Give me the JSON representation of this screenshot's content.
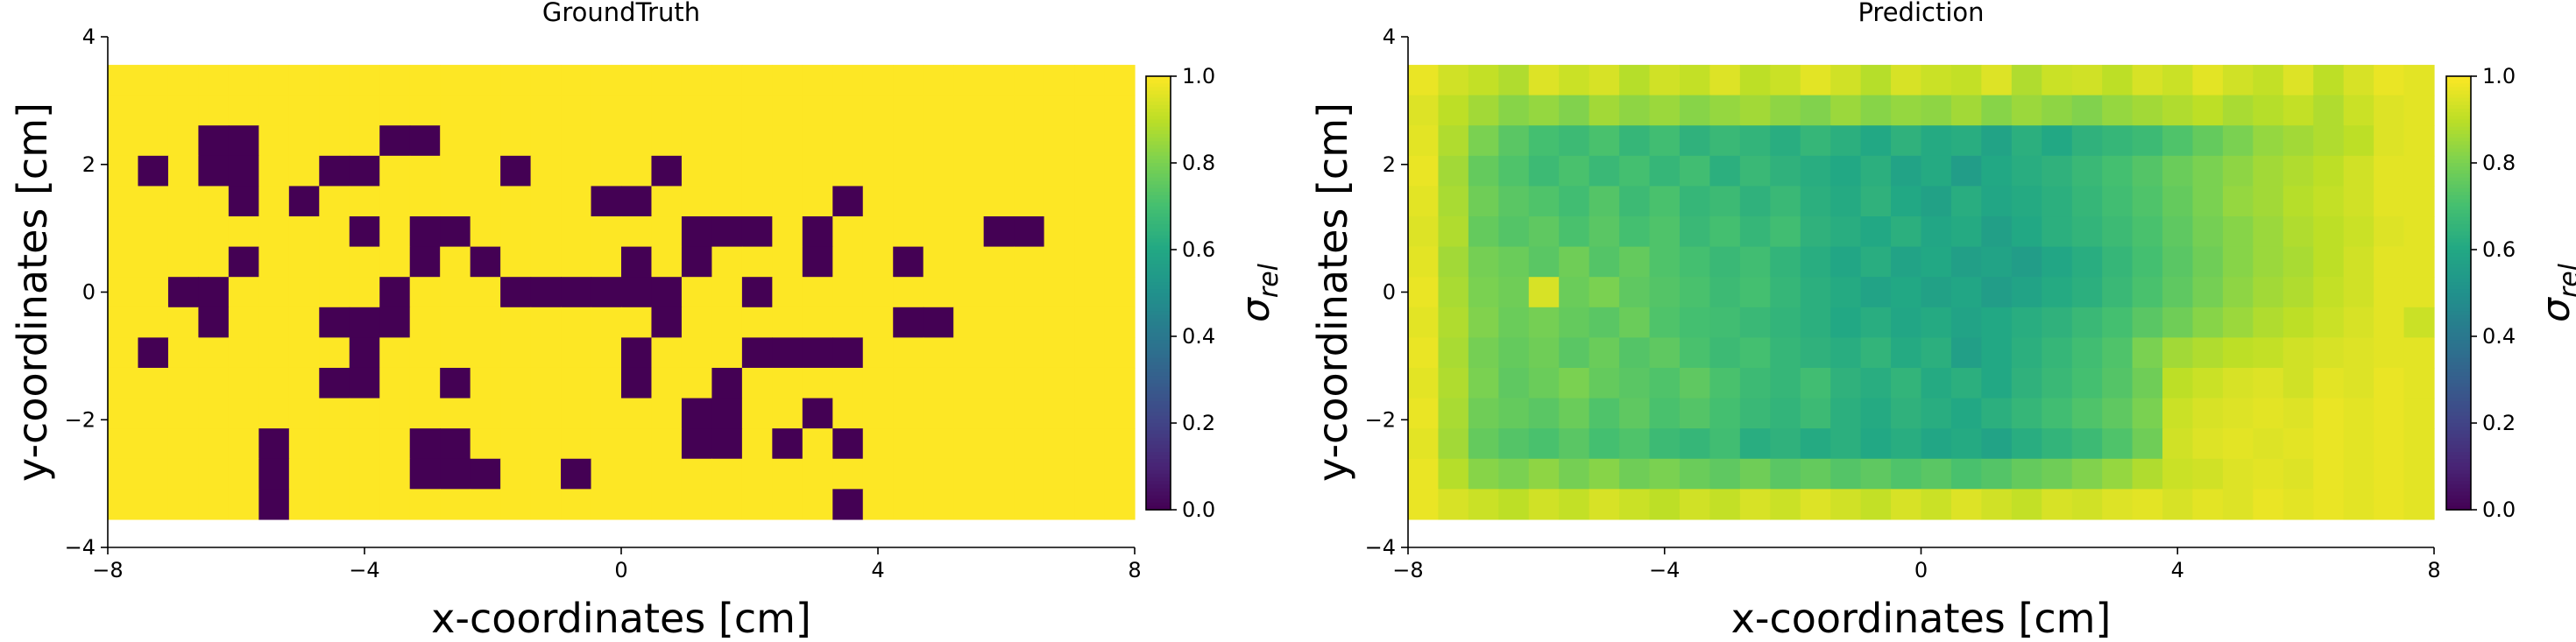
{
  "chart_data": [
    {
      "type": "heatmap",
      "title": "GroundTruth",
      "xlabel": "x-coordinates [cm]",
      "ylabel": "y-coordinates [cm]",
      "xlim": [
        -8,
        8
      ],
      "ylim": [
        -4,
        4
      ],
      "extent": [
        -8,
        8,
        -3.56,
        3.56
      ],
      "xticks": [
        -8,
        -4,
        0,
        4,
        8
      ],
      "yticks": [
        -4,
        -2,
        0,
        2,
        4
      ],
      "xtick_labels": [
        "−8",
        "−4",
        "0",
        "4",
        "8"
      ],
      "ytick_labels": [
        "−4",
        "−2",
        "0",
        "2",
        "4"
      ],
      "colorbar": {
        "label": "σ",
        "label_sub": "rel",
        "range": [
          0,
          1
        ],
        "ticks": [
          0.0,
          0.2,
          0.4,
          0.6,
          0.8,
          1.0
        ],
        "tick_labels": [
          "0.0",
          "0.2",
          "0.4",
          "0.6",
          "0.8",
          "1.0"
        ],
        "colormap": "viridis"
      },
      "grid": {
        "rows": 15,
        "cols": 34,
        "default_value": 1.0,
        "cells": [
          {
            "r": 2,
            "c": 3,
            "v": 0
          },
          {
            "r": 2,
            "c": 4,
            "v": 0
          },
          {
            "r": 2,
            "c": 9,
            "v": 0
          },
          {
            "r": 2,
            "c": 10,
            "v": 0
          },
          {
            "r": 3,
            "c": 1,
            "v": 0
          },
          {
            "r": 3,
            "c": 3,
            "v": 0
          },
          {
            "r": 3,
            "c": 4,
            "v": 0
          },
          {
            "r": 3,
            "c": 7,
            "v": 0
          },
          {
            "r": 3,
            "c": 8,
            "v": 0
          },
          {
            "r": 3,
            "c": 13,
            "v": 0
          },
          {
            "r": 3,
            "c": 18,
            "v": 0
          },
          {
            "r": 4,
            "c": 4,
            "v": 0
          },
          {
            "r": 4,
            "c": 6,
            "v": 0
          },
          {
            "r": 4,
            "c": 16,
            "v": 0
          },
          {
            "r": 4,
            "c": 17,
            "v": 0
          },
          {
            "r": 4,
            "c": 24,
            "v": 0
          },
          {
            "r": 5,
            "c": 8,
            "v": 0
          },
          {
            "r": 5,
            "c": 10,
            "v": 0
          },
          {
            "r": 5,
            "c": 11,
            "v": 0
          },
          {
            "r": 5,
            "c": 19,
            "v": 0
          },
          {
            "r": 5,
            "c": 20,
            "v": 0
          },
          {
            "r": 5,
            "c": 21,
            "v": 0
          },
          {
            "r": 5,
            "c": 23,
            "v": 0
          },
          {
            "r": 5,
            "c": 29,
            "v": 0
          },
          {
            "r": 5,
            "c": 30,
            "v": 0
          },
          {
            "r": 6,
            "c": 4,
            "v": 0
          },
          {
            "r": 6,
            "c": 10,
            "v": 0
          },
          {
            "r": 6,
            "c": 12,
            "v": 0
          },
          {
            "r": 6,
            "c": 17,
            "v": 0
          },
          {
            "r": 6,
            "c": 19,
            "v": 0
          },
          {
            "r": 6,
            "c": 23,
            "v": 0
          },
          {
            "r": 6,
            "c": 26,
            "v": 0
          },
          {
            "r": 7,
            "c": 2,
            "v": 0
          },
          {
            "r": 7,
            "c": 3,
            "v": 0
          },
          {
            "r": 7,
            "c": 9,
            "v": 0
          },
          {
            "r": 7,
            "c": 13,
            "v": 0
          },
          {
            "r": 7,
            "c": 14,
            "v": 0
          },
          {
            "r": 7,
            "c": 15,
            "v": 0
          },
          {
            "r": 7,
            "c": 16,
            "v": 0
          },
          {
            "r": 7,
            "c": 17,
            "v": 0
          },
          {
            "r": 7,
            "c": 18,
            "v": 0
          },
          {
            "r": 7,
            "c": 21,
            "v": 0
          },
          {
            "r": 8,
            "c": 3,
            "v": 0
          },
          {
            "r": 8,
            "c": 7,
            "v": 0
          },
          {
            "r": 8,
            "c": 8,
            "v": 0
          },
          {
            "r": 8,
            "c": 9,
            "v": 0
          },
          {
            "r": 8,
            "c": 18,
            "v": 0
          },
          {
            "r": 8,
            "c": 26,
            "v": 0
          },
          {
            "r": 8,
            "c": 27,
            "v": 0
          },
          {
            "r": 9,
            "c": 1,
            "v": 0
          },
          {
            "r": 9,
            "c": 8,
            "v": 0
          },
          {
            "r": 9,
            "c": 17,
            "v": 0
          },
          {
            "r": 9,
            "c": 21,
            "v": 0
          },
          {
            "r": 9,
            "c": 22,
            "v": 0
          },
          {
            "r": 9,
            "c": 23,
            "v": 0
          },
          {
            "r": 9,
            "c": 24,
            "v": 0
          },
          {
            "r": 10,
            "c": 7,
            "v": 0
          },
          {
            "r": 10,
            "c": 8,
            "v": 0
          },
          {
            "r": 10,
            "c": 11,
            "v": 0
          },
          {
            "r": 10,
            "c": 17,
            "v": 0
          },
          {
            "r": 10,
            "c": 20,
            "v": 0
          },
          {
            "r": 11,
            "c": 19,
            "v": 0
          },
          {
            "r": 11,
            "c": 20,
            "v": 0
          },
          {
            "r": 11,
            "c": 23,
            "v": 0
          },
          {
            "r": 12,
            "c": 5,
            "v": 0
          },
          {
            "r": 12,
            "c": 10,
            "v": 0
          },
          {
            "r": 12,
            "c": 11,
            "v": 0
          },
          {
            "r": 12,
            "c": 19,
            "v": 0
          },
          {
            "r": 12,
            "c": 20,
            "v": 0
          },
          {
            "r": 12,
            "c": 22,
            "v": 0
          },
          {
            "r": 12,
            "c": 24,
            "v": 0
          },
          {
            "r": 13,
            "c": 5,
            "v": 0
          },
          {
            "r": 13,
            "c": 10,
            "v": 0
          },
          {
            "r": 13,
            "c": 11,
            "v": 0
          },
          {
            "r": 13,
            "c": 12,
            "v": 0
          },
          {
            "r": 13,
            "c": 15,
            "v": 0
          },
          {
            "r": 14,
            "c": 5,
            "v": 0
          },
          {
            "r": 14,
            "c": 24,
            "v": 0
          }
        ]
      }
    },
    {
      "type": "heatmap",
      "title": "Prediction",
      "xlabel": "x-coordinates [cm]",
      "ylabel": "y-coordinates [cm]",
      "xlim": [
        -8,
        8
      ],
      "ylim": [
        -4,
        4
      ],
      "extent": [
        -8,
        8,
        -3.56,
        3.56
      ],
      "xticks": [
        -8,
        -4,
        0,
        4,
        8
      ],
      "yticks": [
        -4,
        -2,
        0,
        2,
        4
      ],
      "xtick_labels": [
        "−8",
        "−4",
        "0",
        "4",
        "8"
      ],
      "ytick_labels": [
        "−4",
        "−2",
        "0",
        "2",
        "4"
      ],
      "colorbar": {
        "label": "σ",
        "label_sub": "rel",
        "range": [
          0,
          1
        ],
        "ticks": [
          0.0,
          0.2,
          0.4,
          0.6,
          0.8,
          1.0
        ],
        "tick_labels": [
          "0.0",
          "0.2",
          "0.4",
          "0.6",
          "0.8",
          "1.0"
        ],
        "colormap": "viridis"
      },
      "values": [
        [
          0.97,
          0.93,
          0.91,
          0.88,
          0.95,
          0.92,
          0.94,
          0.89,
          0.93,
          0.91,
          0.95,
          0.9,
          0.92,
          0.96,
          0.93,
          0.89,
          0.94,
          0.92,
          0.91,
          0.95,
          0.88,
          0.92,
          0.93,
          0.9,
          0.94,
          0.92,
          0.96,
          0.93,
          0.91,
          0.95,
          0.9,
          0.94,
          0.97,
          0.96
        ],
        [
          0.95,
          0.9,
          0.86,
          0.82,
          0.84,
          0.81,
          0.86,
          0.83,
          0.85,
          0.82,
          0.84,
          0.86,
          0.83,
          0.81,
          0.85,
          0.82,
          0.84,
          0.83,
          0.86,
          0.82,
          0.85,
          0.83,
          0.81,
          0.84,
          0.86,
          0.88,
          0.9,
          0.87,
          0.89,
          0.91,
          0.88,
          0.92,
          0.95,
          0.96
        ],
        [
          0.96,
          0.88,
          0.8,
          0.74,
          0.7,
          0.68,
          0.71,
          0.66,
          0.69,
          0.64,
          0.67,
          0.65,
          0.62,
          0.66,
          0.63,
          0.6,
          0.64,
          0.61,
          0.62,
          0.58,
          0.63,
          0.6,
          0.64,
          0.66,
          0.68,
          0.72,
          0.76,
          0.8,
          0.84,
          0.86,
          0.88,
          0.9,
          0.95,
          0.96
        ],
        [
          0.97,
          0.86,
          0.76,
          0.72,
          0.68,
          0.71,
          0.67,
          0.7,
          0.66,
          0.69,
          0.63,
          0.67,
          0.64,
          0.62,
          0.6,
          0.63,
          0.58,
          0.61,
          0.55,
          0.6,
          0.62,
          0.64,
          0.67,
          0.7,
          0.73,
          0.77,
          0.8,
          0.83,
          0.86,
          0.88,
          0.9,
          0.93,
          0.96,
          0.96
        ],
        [
          0.96,
          0.87,
          0.78,
          0.74,
          0.72,
          0.69,
          0.73,
          0.68,
          0.71,
          0.66,
          0.68,
          0.64,
          0.67,
          0.63,
          0.61,
          0.64,
          0.6,
          0.57,
          0.62,
          0.59,
          0.61,
          0.63,
          0.66,
          0.69,
          0.72,
          0.76,
          0.8,
          0.84,
          0.86,
          0.89,
          0.91,
          0.93,
          0.96,
          0.96
        ],
        [
          0.95,
          0.88,
          0.76,
          0.73,
          0.75,
          0.71,
          0.74,
          0.7,
          0.72,
          0.67,
          0.7,
          0.66,
          0.69,
          0.64,
          0.62,
          0.6,
          0.63,
          0.59,
          0.61,
          0.56,
          0.6,
          0.63,
          0.65,
          0.68,
          0.71,
          0.75,
          0.79,
          0.82,
          0.85,
          0.88,
          0.9,
          0.92,
          0.95,
          0.96
        ],
        [
          0.96,
          0.86,
          0.79,
          0.77,
          0.74,
          0.78,
          0.73,
          0.76,
          0.72,
          0.7,
          0.67,
          0.69,
          0.65,
          0.62,
          0.59,
          0.62,
          0.58,
          0.6,
          0.56,
          0.58,
          0.55,
          0.59,
          0.62,
          0.66,
          0.7,
          0.74,
          0.78,
          0.82,
          0.85,
          0.87,
          0.9,
          0.93,
          0.96,
          0.96
        ],
        [
          0.97,
          0.87,
          0.8,
          0.78,
          0.94,
          0.77,
          0.8,
          0.75,
          0.73,
          0.71,
          0.68,
          0.7,
          0.66,
          0.63,
          0.61,
          0.58,
          0.6,
          0.57,
          0.59,
          0.55,
          0.58,
          0.61,
          0.63,
          0.67,
          0.71,
          0.75,
          0.79,
          0.83,
          0.86,
          0.88,
          0.91,
          0.93,
          0.96,
          0.96
        ],
        [
          0.96,
          0.88,
          0.81,
          0.77,
          0.79,
          0.76,
          0.74,
          0.77,
          0.72,
          0.7,
          0.69,
          0.67,
          0.65,
          0.63,
          0.6,
          0.62,
          0.59,
          0.61,
          0.58,
          0.6,
          0.62,
          0.64,
          0.67,
          0.7,
          0.74,
          0.78,
          0.82,
          0.85,
          0.88,
          0.9,
          0.92,
          0.94,
          0.96,
          0.92
        ],
        [
          0.97,
          0.87,
          0.79,
          0.76,
          0.78,
          0.74,
          0.77,
          0.73,
          0.75,
          0.71,
          0.68,
          0.7,
          0.66,
          0.64,
          0.62,
          0.65,
          0.61,
          0.63,
          0.56,
          0.6,
          0.63,
          0.66,
          0.69,
          0.72,
          0.8,
          0.86,
          0.88,
          0.9,
          0.91,
          0.93,
          0.94,
          0.95,
          0.96,
          0.96
        ],
        [
          0.96,
          0.88,
          0.8,
          0.75,
          0.77,
          0.8,
          0.76,
          0.74,
          0.72,
          0.75,
          0.71,
          0.68,
          0.66,
          0.69,
          0.64,
          0.62,
          0.65,
          0.61,
          0.63,
          0.6,
          0.64,
          0.67,
          0.7,
          0.73,
          0.78,
          0.9,
          0.92,
          0.94,
          0.95,
          0.93,
          0.96,
          0.95,
          0.97,
          0.96
        ],
        [
          0.97,
          0.87,
          0.78,
          0.76,
          0.74,
          0.77,
          0.72,
          0.75,
          0.71,
          0.73,
          0.7,
          0.67,
          0.65,
          0.68,
          0.63,
          0.61,
          0.64,
          0.62,
          0.6,
          0.63,
          0.66,
          0.69,
          0.72,
          0.75,
          0.8,
          0.92,
          0.94,
          0.95,
          0.96,
          0.95,
          0.97,
          0.96,
          0.97,
          0.96
        ],
        [
          0.96,
          0.86,
          0.76,
          0.73,
          0.71,
          0.74,
          0.7,
          0.72,
          0.68,
          0.66,
          0.69,
          0.62,
          0.64,
          0.61,
          0.63,
          0.6,
          0.62,
          0.59,
          0.61,
          0.58,
          0.62,
          0.65,
          0.68,
          0.72,
          0.78,
          0.93,
          0.95,
          0.96,
          0.95,
          0.96,
          0.97,
          0.96,
          0.97,
          0.96
        ],
        [
          0.97,
          0.89,
          0.82,
          0.8,
          0.83,
          0.79,
          0.82,
          0.78,
          0.8,
          0.77,
          0.75,
          0.78,
          0.74,
          0.76,
          0.73,
          0.75,
          0.72,
          0.74,
          0.71,
          0.73,
          0.76,
          0.78,
          0.81,
          0.84,
          0.88,
          0.92,
          0.93,
          0.95,
          0.96,
          0.95,
          0.97,
          0.96,
          0.97,
          0.96
        ],
        [
          0.97,
          0.94,
          0.92,
          0.9,
          0.93,
          0.91,
          0.94,
          0.92,
          0.9,
          0.93,
          0.91,
          0.94,
          0.92,
          0.95,
          0.93,
          0.91,
          0.94,
          0.92,
          0.95,
          0.93,
          0.91,
          0.94,
          0.93,
          0.95,
          0.96,
          0.94,
          0.96,
          0.95,
          0.97,
          0.96,
          0.97,
          0.96,
          0.97,
          0.96
        ]
      ]
    }
  ]
}
